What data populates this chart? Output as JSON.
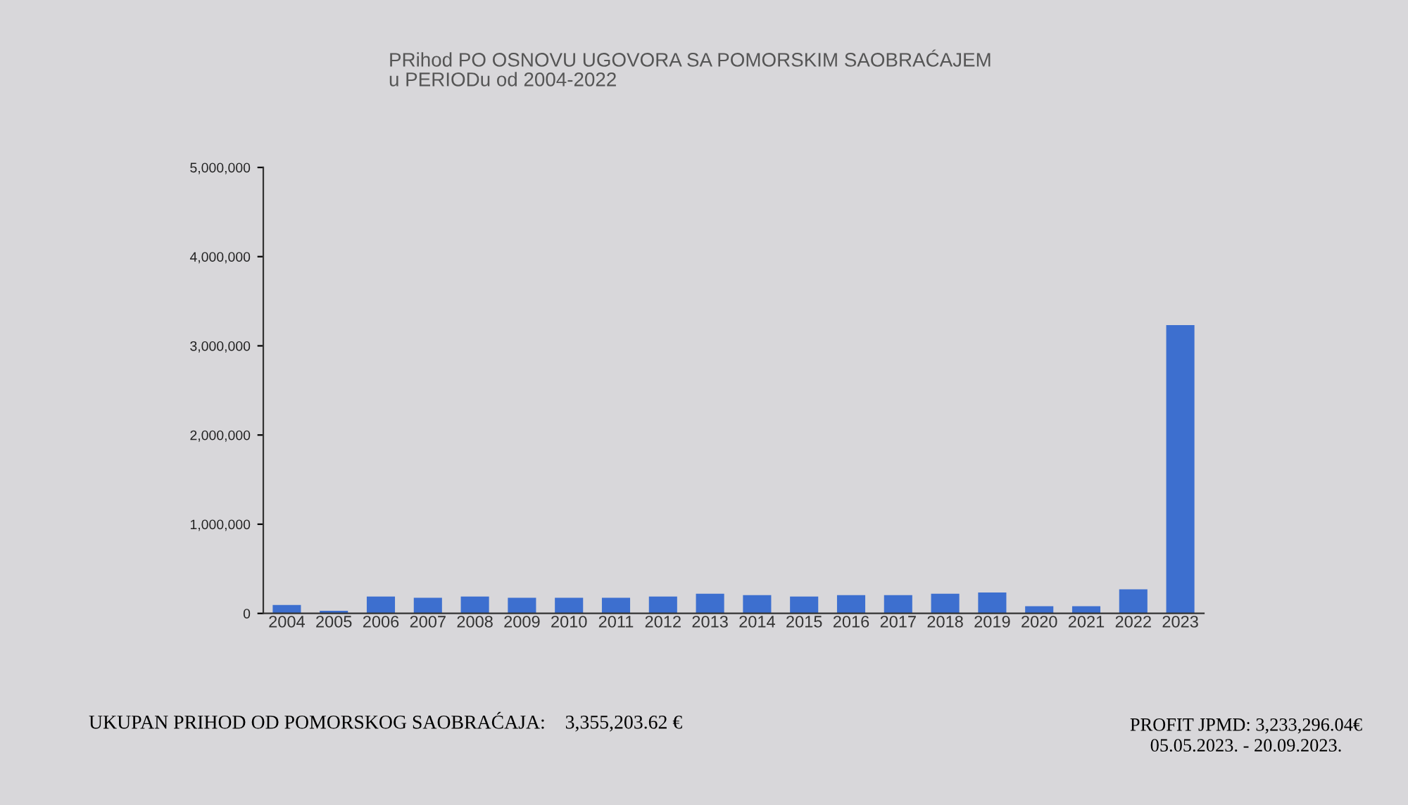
{
  "chart_data": {
    "type": "bar",
    "title": "PRihod PO OSNOVU UGOVORA SA POMORSKIM SAOBRAĆAJEM\nu PERIODu od 2004-2022",
    "categories": [
      "2004",
      "2005",
      "2006",
      "2007",
      "2008",
      "2009",
      "2010",
      "2011",
      "2012",
      "2013",
      "2014",
      "2015",
      "2016",
      "2017",
      "2018",
      "2019",
      "2020",
      "2021",
      "2022",
      "2023"
    ],
    "values": [
      95000,
      30000,
      190000,
      175000,
      190000,
      175000,
      175000,
      175000,
      190000,
      220000,
      205000,
      190000,
      205000,
      205000,
      220000,
      235000,
      80000,
      80000,
      270000,
      3233296
    ],
    "color": "#3d6fcf",
    "ylim": [
      0,
      5000000
    ],
    "yticks": [
      {
        "value": 0,
        "label": "0"
      },
      {
        "value": 1000000,
        "label": "1,000,000"
      },
      {
        "value": 2000000,
        "label": "2,000,000"
      },
      {
        "value": 3000000,
        "label": "3,000,000"
      },
      {
        "value": 4000000,
        "label": "4,000,000"
      },
      {
        "value": 5000000,
        "label": "5,000,000"
      }
    ],
    "grid": false,
    "annotations": [
      "UKUPAN PRIHOD OD POMORSKOG SAOBRAĆAJA:    3,355,203.62 €",
      "PROFIT JPMD: 3,233,296.04€\n05.05.2023. - 20.09.2023."
    ]
  }
}
